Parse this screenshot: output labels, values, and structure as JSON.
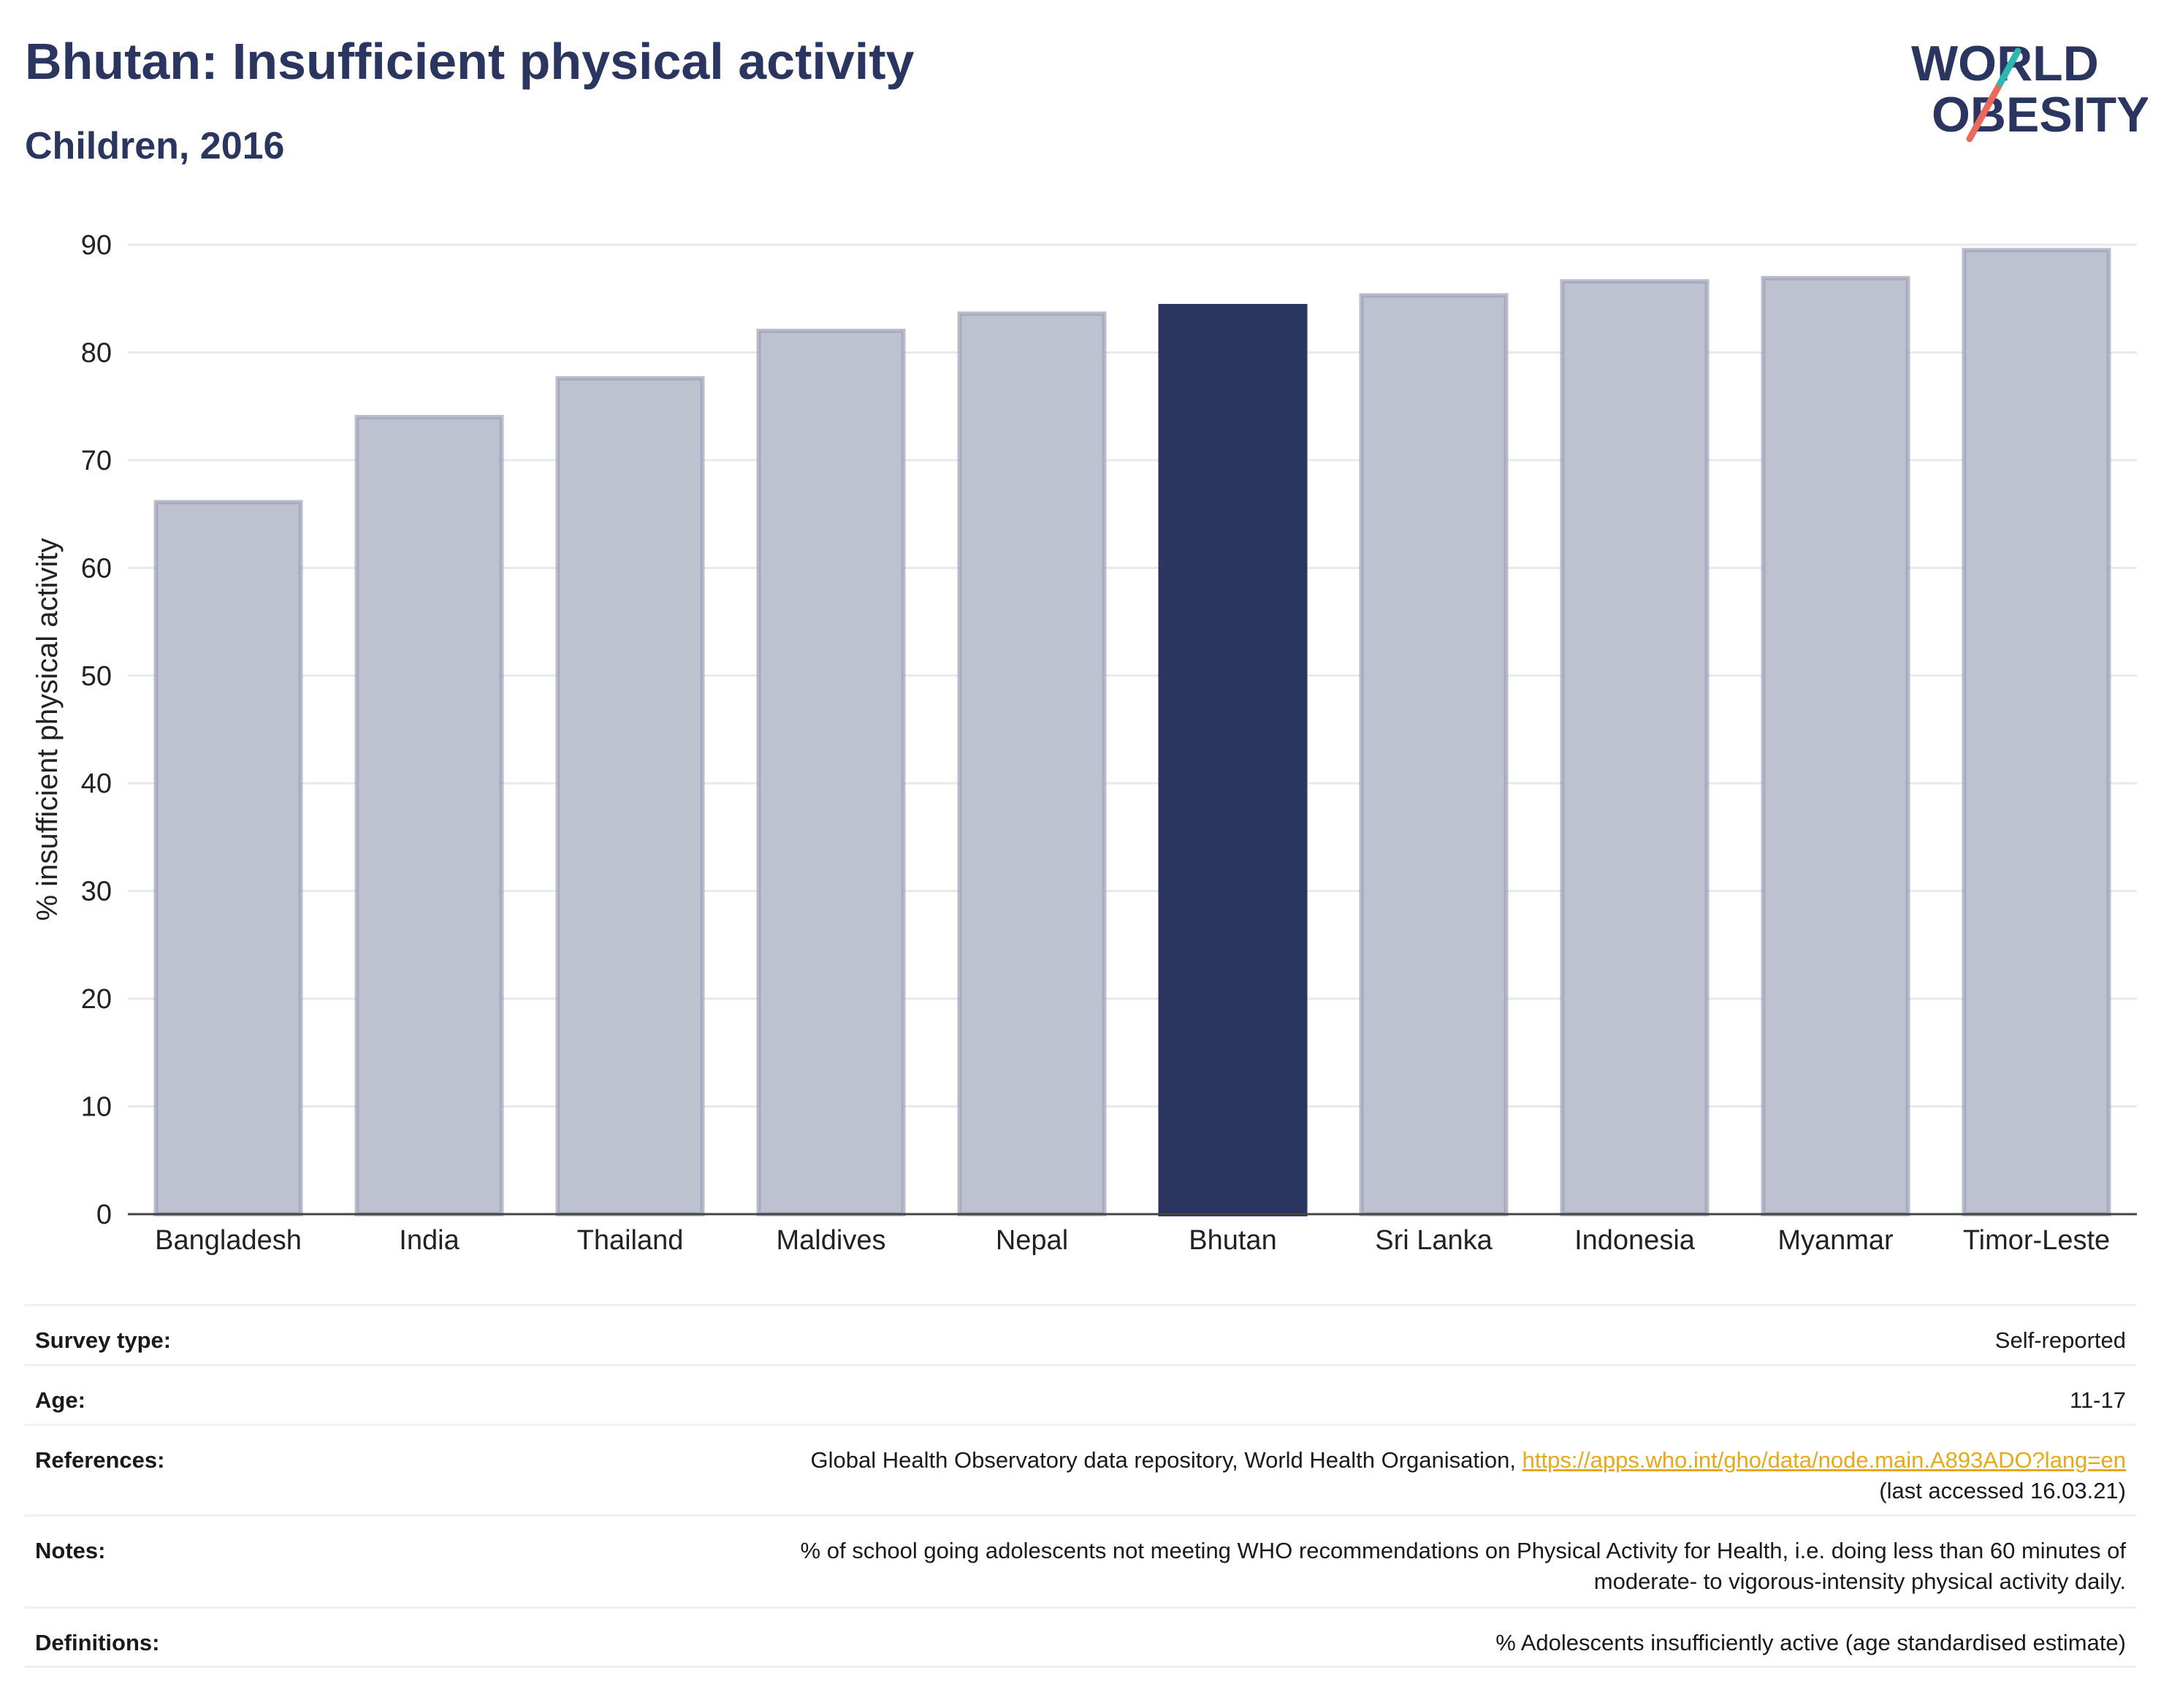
{
  "header": {
    "title": "Bhutan: Insufficient physical activity",
    "subtitle": "Children, 2016"
  },
  "logo": {
    "line1": "WORLD",
    "line2": "OBESITY",
    "accent_teal": "#2bb7b3",
    "accent_coral": "#e9695c"
  },
  "colors": {
    "highlight": "#2a3560",
    "bar": "#bec1cf",
    "bar_border": "#9ba1b8"
  },
  "chart_data": {
    "type": "bar",
    "categories": [
      "Bangladesh",
      "India",
      "Thailand",
      "Maldives",
      "Nepal",
      "Bhutan",
      "Sri Lanka",
      "Indonesia",
      "Myanmar",
      "Timor-Leste"
    ],
    "values": [
      66.1,
      74.0,
      77.6,
      82.0,
      83.6,
      84.3,
      85.3,
      86.6,
      86.9,
      89.5
    ],
    "highlight": "Bhutan",
    "ylabel": "% insufficient physical activity",
    "xlabel": "",
    "ylim": [
      0,
      90
    ],
    "yticks": [
      0,
      10,
      20,
      30,
      40,
      50,
      60,
      70,
      80,
      90
    ],
    "grid": true
  },
  "meta": {
    "survey_type": {
      "label": "Survey type:",
      "value": "Self-reported"
    },
    "age": {
      "label": "Age:",
      "value": "11-17"
    },
    "references": {
      "label": "References:",
      "text": "Global Health Observatory data repository, World Health Organisation, ",
      "link": "https://apps.who.int/gho/data/node.main.A893ADO?lang=en",
      "accessed": "(last accessed 16.03.21)"
    },
    "notes": {
      "label": "Notes:",
      "line1": "% of school going adolescents not meeting WHO recommendations on Physical Activity for Health, i.e. doing less than 60 minutes of",
      "line2": "moderate- to vigorous-intensity physical activity daily."
    },
    "definitions": {
      "label": "Definitions:",
      "value": "% Adolescents insufficiently active (age standardised estimate)"
    }
  }
}
